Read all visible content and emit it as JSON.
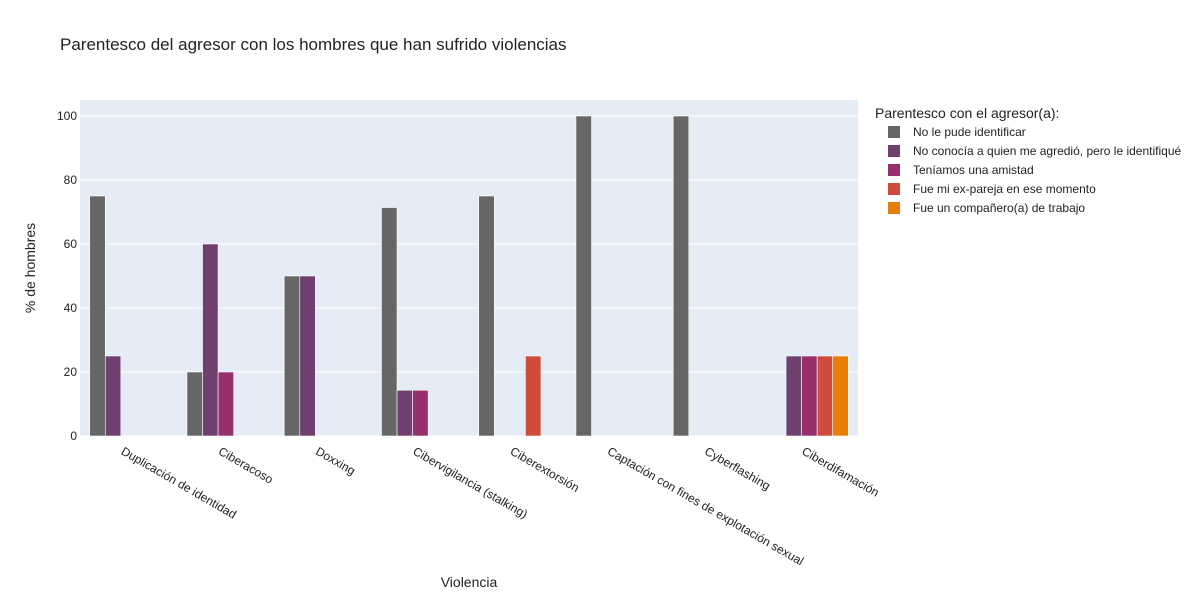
{
  "chart_data": {
    "type": "bar",
    "title": "Parentesco del agresor con los hombres que han sufrido violencias",
    "xlabel": "Violencia",
    "ylabel": "% de hombres",
    "ylim": [
      0,
      105
    ],
    "yticks": [
      0,
      20,
      40,
      60,
      80,
      100
    ],
    "grid": true,
    "legend_title": "Parentesco con el agresor(a):",
    "legend_position": "right",
    "categories": [
      "Duplicación de identidad",
      "Ciberacoso",
      "Doxxing",
      "Cibervigilancia (stalking)",
      "Ciberextorsión",
      "Captación con fines de explotación sexual",
      "Cyberflashing",
      "Ciberdifamación"
    ],
    "series": [
      {
        "name": "No le pude identificar",
        "color": "#666666",
        "values": [
          75,
          20,
          50,
          71.4,
          75,
          100,
          100,
          0
        ]
      },
      {
        "name": "No conocía a quien me agredió, pero le identifiqué",
        "color": "#6f3f70",
        "values": [
          25,
          60,
          50,
          14.3,
          0,
          0,
          0,
          25
        ]
      },
      {
        "name": "Teníamos una amistad",
        "color": "#972f6c",
        "values": [
          0,
          20,
          0,
          14.3,
          0,
          0,
          0,
          25
        ]
      },
      {
        "name": "Fue mi ex-pareja en ese momento",
        "color": "#cf4b3c",
        "values": [
          0,
          0,
          0,
          0,
          25,
          0,
          0,
          25
        ]
      },
      {
        "name": "Fue un compañero(a) de trabajo",
        "color": "#e67e08",
        "values": [
          0,
          0,
          0,
          0,
          0,
          0,
          0,
          25
        ]
      }
    ],
    "plot_bg": "#e5ecf6"
  }
}
